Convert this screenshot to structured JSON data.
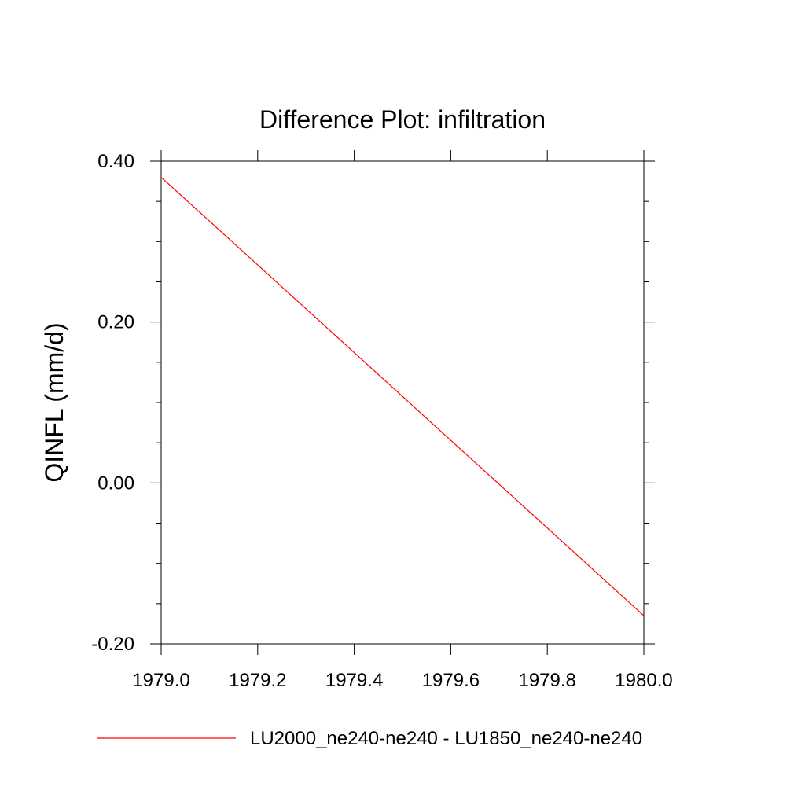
{
  "chart_data": {
    "type": "line",
    "title": "Difference Plot: infiltration",
    "xlabel": "",
    "ylabel": "QINFL  (mm/d)",
    "xlim": [
      1979.0,
      1980.0
    ],
    "ylim": [
      -0.2,
      0.4
    ],
    "x_ticks": [
      1979.0,
      1979.2,
      1979.4,
      1979.6,
      1979.8,
      1980.0
    ],
    "x_tick_labels": [
      "1979.0",
      "1979.2",
      "1979.4",
      "1979.6",
      "1979.8",
      "1980.0"
    ],
    "y_ticks": [
      -0.2,
      0.0,
      0.2,
      0.4
    ],
    "y_tick_labels": [
      "-0.20",
      "0.00",
      "0.20",
      "0.40"
    ],
    "y_minor_step": 0.05,
    "grid": false,
    "legend_position": "bottom",
    "series": [
      {
        "name": "LU2000_ne240-ne240 - LU1850_ne240-ne240",
        "color": "#ff0000",
        "x": [
          1979.0,
          1980.0
        ],
        "y": [
          0.38,
          -0.165
        ]
      }
    ]
  }
}
